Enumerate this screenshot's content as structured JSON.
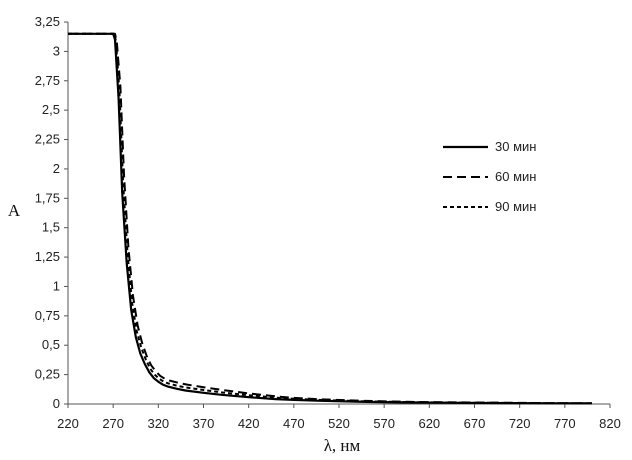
{
  "chart_data": {
    "type": "line",
    "xlabel": "λ, нм",
    "ylabel": "A",
    "xlim": [
      220,
      820
    ],
    "ylim": [
      0,
      3.25
    ],
    "x_ticks": [
      "220",
      "270",
      "320",
      "370",
      "420",
      "470",
      "520",
      "570",
      "620",
      "670",
      "720",
      "770",
      "820"
    ],
    "y_ticks": [
      "0",
      "0,25",
      "0,5",
      "0,75",
      "1",
      "1,25",
      "1,5",
      "1,75",
      "2",
      "2,25",
      "2,5",
      "2,75",
      "3",
      "3,25"
    ],
    "legend_position": "right",
    "series": [
      {
        "name": "30 мин",
        "style": "solid",
        "x": [
          220,
          270,
          272,
          276,
          280,
          285,
          290,
          295,
          300,
          305,
          310,
          315,
          320,
          325,
          330,
          340,
          350,
          370,
          390,
          420,
          450,
          470,
          500,
          550,
          600,
          650,
          700,
          750,
          800
        ],
        "y": [
          3.15,
          3.15,
          3.1,
          2.6,
          1.8,
          1.2,
          0.8,
          0.57,
          0.43,
          0.34,
          0.27,
          0.22,
          0.19,
          0.165,
          0.15,
          0.13,
          0.115,
          0.095,
          0.078,
          0.058,
          0.042,
          0.035,
          0.027,
          0.018,
          0.013,
          0.01,
          0.008,
          0.006,
          0.005
        ]
      },
      {
        "name": "60 мин",
        "style": "dashed",
        "x": [
          220,
          272,
          274,
          278,
          282,
          287,
          292,
          297,
          302,
          307,
          312,
          317,
          322,
          327,
          332,
          342,
          352,
          372,
          392,
          420,
          450,
          470,
          500,
          550,
          600,
          650,
          700,
          750,
          800
        ],
        "y": [
          3.15,
          3.15,
          3.08,
          2.7,
          1.95,
          1.32,
          0.92,
          0.67,
          0.52,
          0.41,
          0.33,
          0.28,
          0.24,
          0.215,
          0.2,
          0.18,
          0.165,
          0.14,
          0.118,
          0.09,
          0.065,
          0.052,
          0.04,
          0.026,
          0.018,
          0.014,
          0.011,
          0.008,
          0.006
        ]
      },
      {
        "name": "90 мин",
        "style": "dotted",
        "x": [
          220,
          271,
          273,
          277,
          281,
          286,
          291,
          296,
          301,
          306,
          311,
          316,
          321,
          326,
          331,
          341,
          351,
          371,
          391,
          420,
          450,
          470,
          500,
          550,
          600,
          650,
          700,
          750,
          800
        ],
        "y": [
          3.15,
          3.15,
          3.09,
          2.65,
          1.88,
          1.27,
          0.86,
          0.62,
          0.48,
          0.38,
          0.3,
          0.25,
          0.215,
          0.19,
          0.175,
          0.155,
          0.14,
          0.118,
          0.098,
          0.075,
          0.054,
          0.044,
          0.034,
          0.022,
          0.015,
          0.012,
          0.009,
          0.007,
          0.005
        ]
      }
    ]
  }
}
